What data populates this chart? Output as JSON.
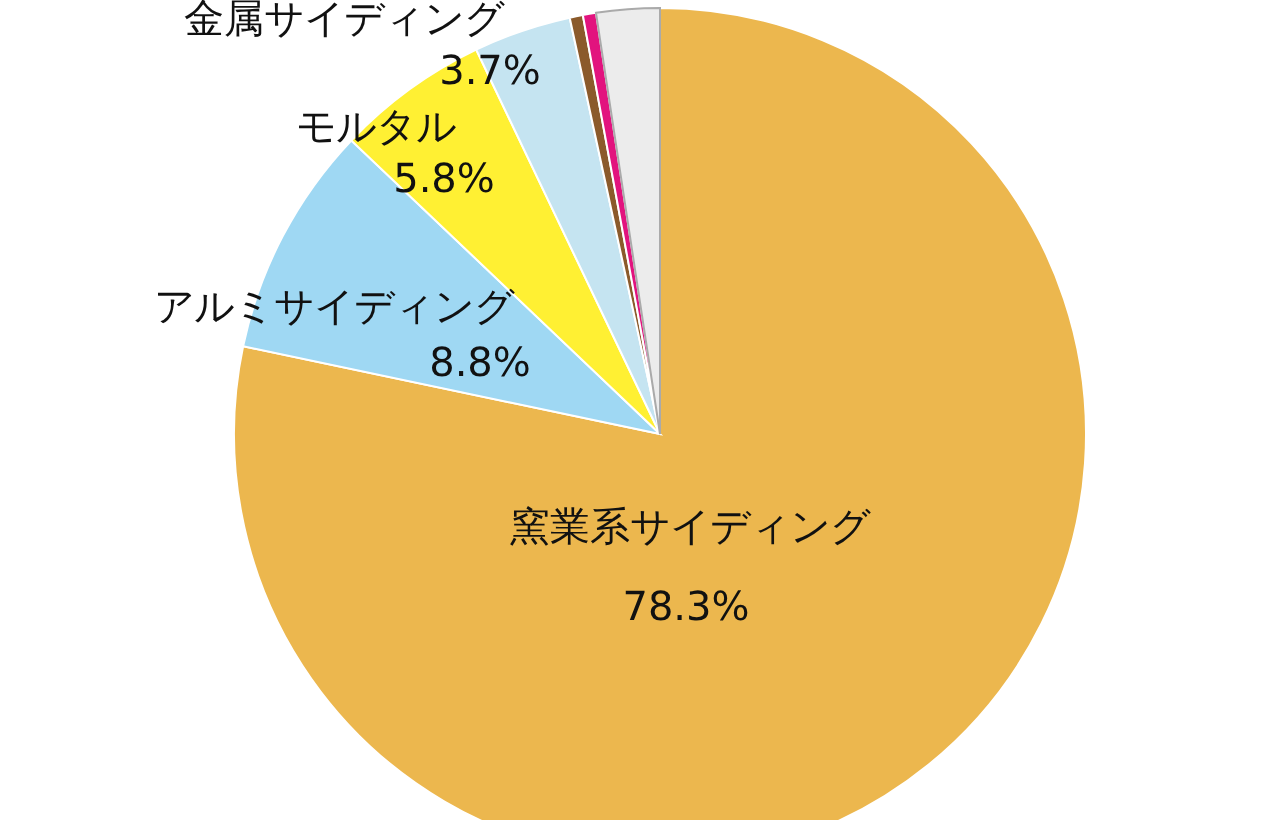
{
  "chart_data": {
    "type": "pie",
    "categories": [
      "窯業系サイディング",
      "アルミサイディング",
      "モルタル",
      "金属サイディング",
      null,
      null,
      null
    ],
    "values": [
      78.3,
      8.8,
      5.8,
      3.7,
      0.5,
      0.5,
      2.4
    ],
    "value_labels": [
      "78.3%",
      "8.8%",
      "5.8%",
      "3.7%",
      null,
      null,
      null
    ],
    "colors": [
      "#ecb74e",
      "#9fd8f3",
      "#fff033",
      "#c5e4f1",
      "#8b5a2b",
      "#e2137e",
      "#ececec"
    ]
  }
}
